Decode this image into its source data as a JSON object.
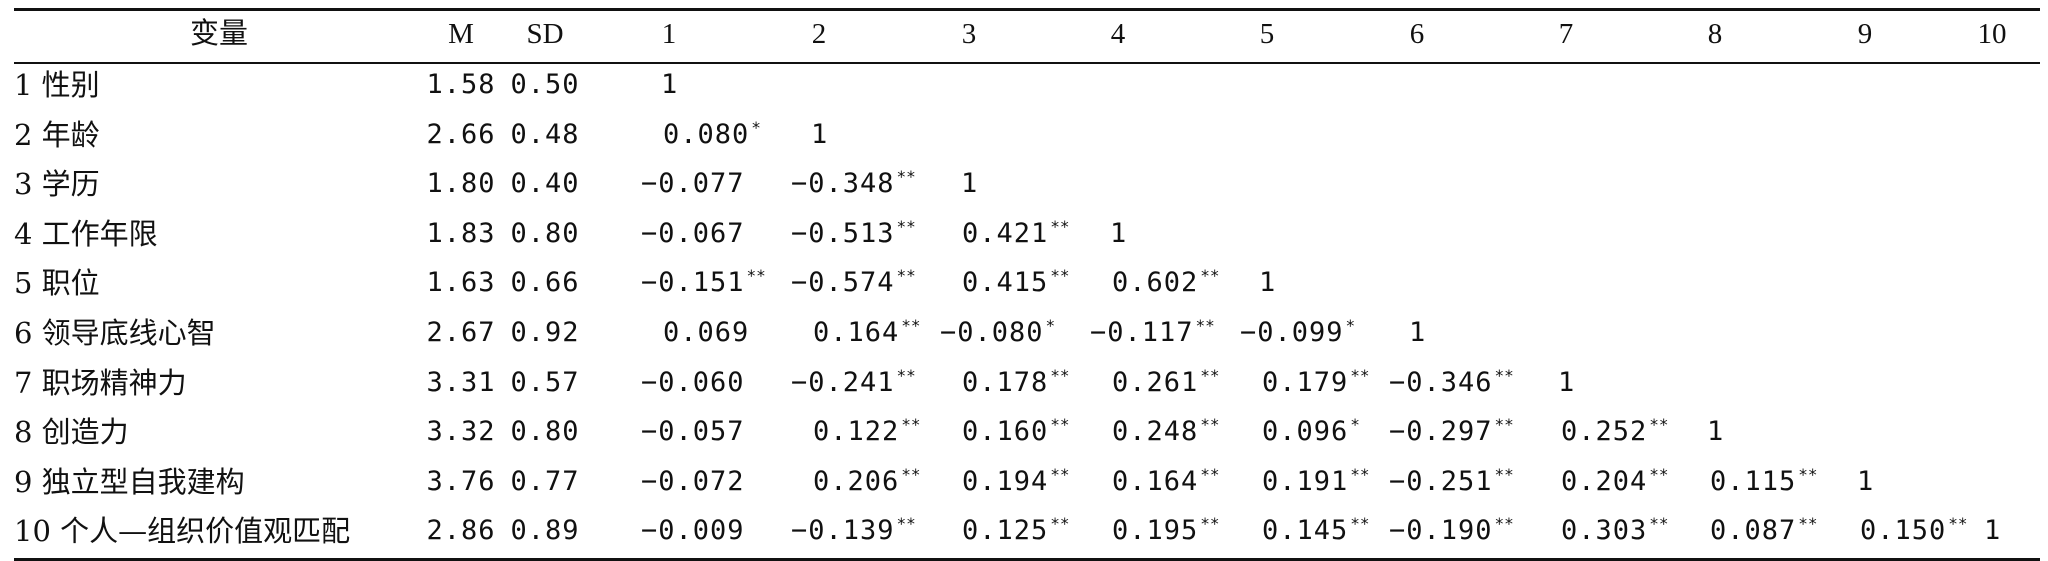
{
  "table": {
    "headers": [
      "变量",
      "M",
      "SD",
      "1",
      "2",
      "3",
      "4",
      "5",
      "6",
      "7",
      "8",
      "9",
      "10"
    ],
    "rows": [
      {
        "label": "1 性别",
        "m": "1.58",
        "sd": "0.50",
        "cells": [
          {
            "v": "1",
            "s": ""
          }
        ]
      },
      {
        "label": "2 年龄",
        "m": "2.66",
        "sd": "0.48",
        "cells": [
          {
            "v": "0.080",
            "s": "*"
          },
          {
            "v": "1",
            "s": ""
          }
        ]
      },
      {
        "label": "3 学历",
        "m": "1.80",
        "sd": "0.40",
        "cells": [
          {
            "v": "−0.077",
            "s": ""
          },
          {
            "v": "−0.348",
            "s": "**"
          },
          {
            "v": "1",
            "s": ""
          }
        ]
      },
      {
        "label": "4 工作年限",
        "m": "1.83",
        "sd": "0.80",
        "cells": [
          {
            "v": "−0.067",
            "s": ""
          },
          {
            "v": "−0.513",
            "s": "**"
          },
          {
            "v": "0.421",
            "s": "**"
          },
          {
            "v": "1",
            "s": ""
          }
        ]
      },
      {
        "label": "5 职位",
        "m": "1.63",
        "sd": "0.66",
        "cells": [
          {
            "v": "−0.151",
            "s": "**"
          },
          {
            "v": "−0.574",
            "s": "**"
          },
          {
            "v": "0.415",
            "s": "**"
          },
          {
            "v": "0.602",
            "s": "**"
          },
          {
            "v": "1",
            "s": ""
          }
        ]
      },
      {
        "label": "6 领导底线心智",
        "m": "2.67",
        "sd": "0.92",
        "cells": [
          {
            "v": "0.069",
            "s": ""
          },
          {
            "v": "0.164",
            "s": "**"
          },
          {
            "v": "−0.080",
            "s": "*"
          },
          {
            "v": "−0.117",
            "s": "**"
          },
          {
            "v": "−0.099",
            "s": "*"
          },
          {
            "v": "1",
            "s": ""
          }
        ]
      },
      {
        "label": "7 职场精神力",
        "m": "3.31",
        "sd": "0.57",
        "cells": [
          {
            "v": "−0.060",
            "s": ""
          },
          {
            "v": "−0.241",
            "s": "**"
          },
          {
            "v": "0.178",
            "s": "**"
          },
          {
            "v": "0.261",
            "s": "**"
          },
          {
            "v": "0.179",
            "s": "**"
          },
          {
            "v": "−0.346",
            "s": "**"
          },
          {
            "v": "1",
            "s": ""
          }
        ]
      },
      {
        "label": "8 创造力",
        "m": "3.32",
        "sd": "0.80",
        "cells": [
          {
            "v": "−0.057",
            "s": ""
          },
          {
            "v": "0.122",
            "s": "**"
          },
          {
            "v": "0.160",
            "s": "**"
          },
          {
            "v": "0.248",
            "s": "**"
          },
          {
            "v": "0.096",
            "s": "*"
          },
          {
            "v": "−0.297",
            "s": "**"
          },
          {
            "v": "0.252",
            "s": "**"
          },
          {
            "v": "1",
            "s": ""
          }
        ]
      },
      {
        "label": "9 独立型自我建构",
        "m": "3.76",
        "sd": "0.77",
        "cells": [
          {
            "v": "−0.072",
            "s": ""
          },
          {
            "v": "0.206",
            "s": "**"
          },
          {
            "v": "0.194",
            "s": "**"
          },
          {
            "v": "0.164",
            "s": "**"
          },
          {
            "v": "0.191",
            "s": "**"
          },
          {
            "v": "−0.251",
            "s": "**"
          },
          {
            "v": "0.204",
            "s": "**"
          },
          {
            "v": "0.115",
            "s": "**"
          },
          {
            "v": "1",
            "s": ""
          }
        ]
      },
      {
        "label": "10 个人—组织价值观匹配",
        "m": "2.86",
        "sd": "0.89",
        "cells": [
          {
            "v": "−0.009",
            "s": ""
          },
          {
            "v": "−0.139",
            "s": "**"
          },
          {
            "v": "0.125",
            "s": "**"
          },
          {
            "v": "0.195",
            "s": "**"
          },
          {
            "v": "0.145",
            "s": "**"
          },
          {
            "v": "−0.190",
            "s": "**"
          },
          {
            "v": "0.303",
            "s": "**"
          },
          {
            "v": "0.087",
            "s": "**"
          },
          {
            "v": "0.150",
            "s": "**"
          },
          {
            "v": "1",
            "s": ""
          }
        ]
      }
    ]
  }
}
